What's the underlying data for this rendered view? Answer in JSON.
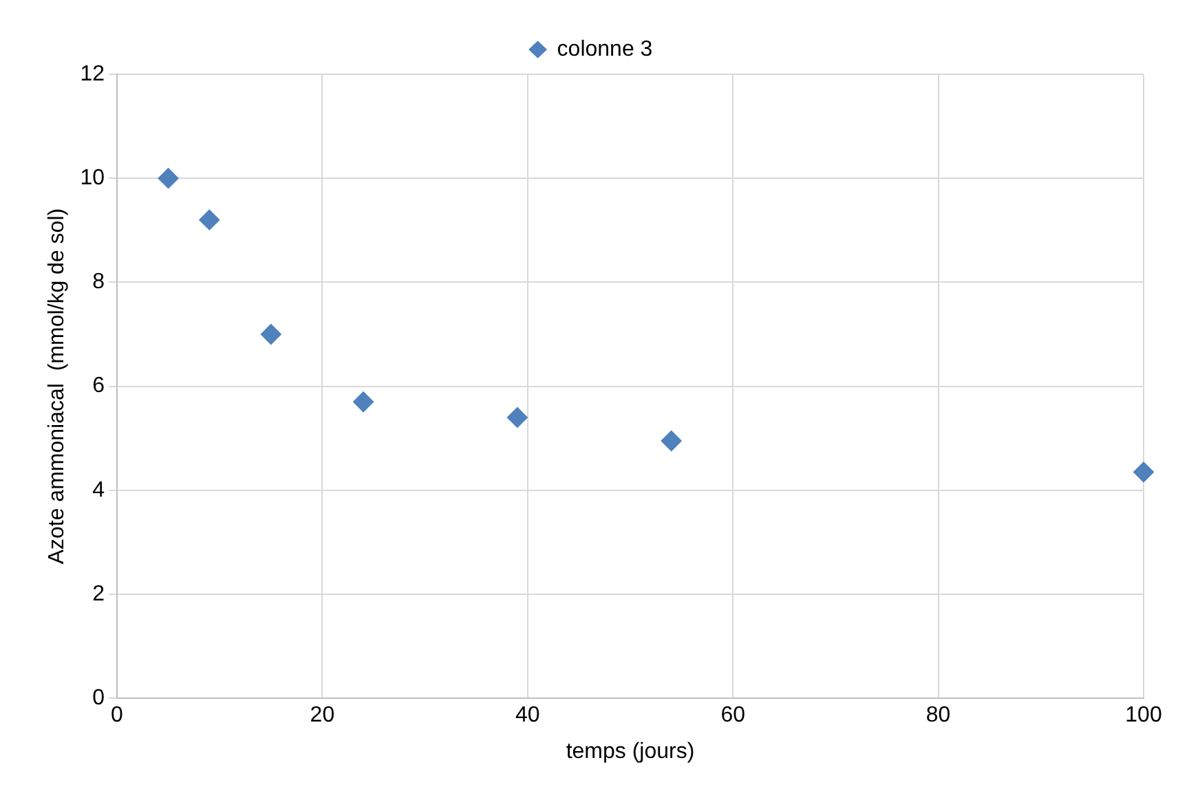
{
  "chart_data": {
    "type": "scatter",
    "xlabel": "temps (jours)",
    "ylabel": "Azote ammoniacal  (mmol/kg de sol)",
    "x": [
      5,
      9,
      15,
      24,
      39,
      54,
      100
    ],
    "series": [
      {
        "name": "colonne 3",
        "color": "#4f81bd",
        "values": [
          10,
          9.2,
          7,
          5.7,
          5.4,
          4.95,
          4.35
        ]
      }
    ],
    "xlim": [
      0,
      100
    ],
    "xticks": [
      0,
      20,
      40,
      60,
      80,
      100
    ],
    "ylim": [
      0,
      12
    ],
    "yticks": [
      0,
      2,
      4,
      6,
      8,
      10,
      12
    ],
    "grid": true,
    "legend": "top",
    "marker": "diamond"
  }
}
